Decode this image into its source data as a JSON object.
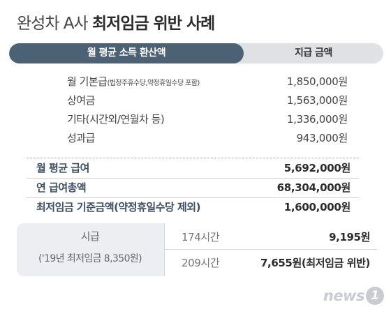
{
  "header": {
    "title_light": "완성차 A사",
    "title_bold": "최저임금 위반 사례"
  },
  "tabs": {
    "left": "월 평균 소득 환산액",
    "right": "지급 금액"
  },
  "items": [
    {
      "label": "월 기본급",
      "note": "(법정주휴수당,약정휴일수당 포함)",
      "value": "1,850,000원"
    },
    {
      "label": "상여금",
      "note": "",
      "value": "1,563,000원"
    },
    {
      "label": "기타(시간외/연월차 등)",
      "note": "",
      "value": "1,336,000원"
    },
    {
      "label": "성과급",
      "note": "",
      "value": "943,000원"
    }
  ],
  "summary": [
    {
      "label": "월 평균 급여",
      "value": "5,692,000원"
    },
    {
      "label": "연 급여총액",
      "value": "68,304,000원"
    },
    {
      "label": "최저임금 기준금액(약정휴일수당 제외)",
      "value": "1,600,000원"
    }
  ],
  "hourly": {
    "label": "시급",
    "note": "('19년 최저임금 8,350원)",
    "rows": [
      {
        "hours": "174시간",
        "value": "9,195원"
      },
      {
        "hours": "209시간",
        "value": "7,655원(최저임금 위반)"
      }
    ]
  },
  "logo": {
    "text": "news",
    "mark": "1"
  },
  "colors": {
    "tab_active": "#4d6174",
    "tab_inactive": "#dfe1e5",
    "summary_label": "#3e4f61",
    "box_bg": "#eceef1",
    "logo": "#c8ccd1"
  }
}
